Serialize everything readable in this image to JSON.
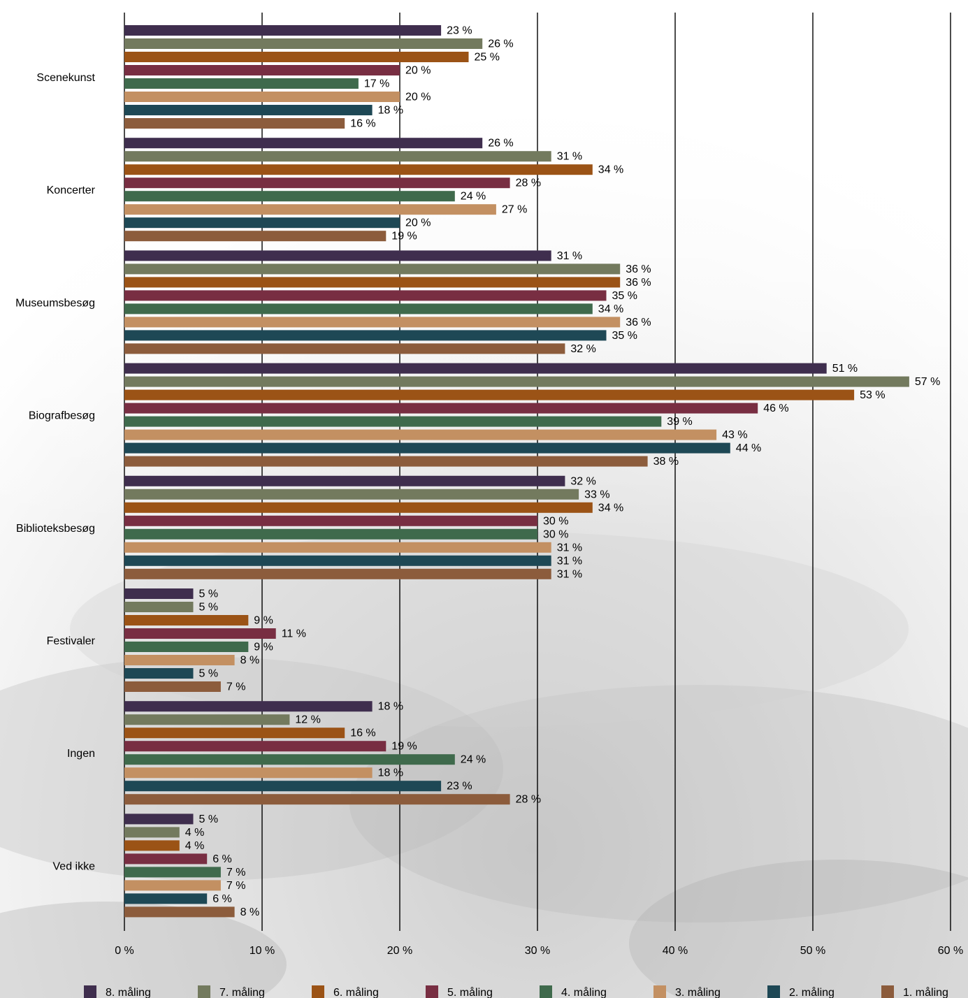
{
  "chart_data": {
    "type": "bar",
    "orientation": "horizontal",
    "title": "",
    "xlabel": "",
    "ylabel": "",
    "xlim": [
      0,
      60
    ],
    "x_ticks": [
      0,
      10,
      20,
      30,
      40,
      50,
      60
    ],
    "x_tick_labels": [
      "0 %",
      "10 %",
      "20 %",
      "30 %",
      "40 %",
      "50 %",
      "60 %"
    ],
    "value_suffix": " %",
    "grid": "vertical",
    "legend_position": "bottom",
    "categories": [
      "Scenekunst",
      "Koncerter",
      "Museumsbesøg",
      "Biografbesøg",
      "Biblioteksbesøg",
      "Festivaler",
      "Ingen",
      "Ved ikke"
    ],
    "series": [
      {
        "name": "8. måling",
        "color": "#3f2e4e",
        "values": [
          23,
          26,
          31,
          51,
          32,
          5,
          18,
          5
        ]
      },
      {
        "name": "7. måling",
        "color": "#737a5e",
        "values": [
          26,
          31,
          36,
          57,
          33,
          5,
          12,
          4
        ]
      },
      {
        "name": "6. måling",
        "color": "#9b5316",
        "values": [
          25,
          34,
          36,
          53,
          34,
          9,
          16,
          4
        ]
      },
      {
        "name": "5. måling",
        "color": "#782e42",
        "values": [
          20,
          28,
          35,
          46,
          30,
          11,
          19,
          6
        ]
      },
      {
        "name": "4. måling",
        "color": "#3f6a4c",
        "values": [
          17,
          24,
          34,
          39,
          30,
          9,
          24,
          7
        ]
      },
      {
        "name": "3. måling",
        "color": "#c39062",
        "values": [
          20,
          27,
          36,
          43,
          31,
          8,
          18,
          7
        ]
      },
      {
        "name": "2. måling",
        "color": "#1e4855",
        "values": [
          18,
          20,
          35,
          44,
          31,
          5,
          23,
          6
        ]
      },
      {
        "name": "1. måling",
        "color": "#8c5c3c",
        "values": [
          16,
          19,
          32,
          38,
          31,
          7,
          28,
          8
        ]
      }
    ]
  }
}
